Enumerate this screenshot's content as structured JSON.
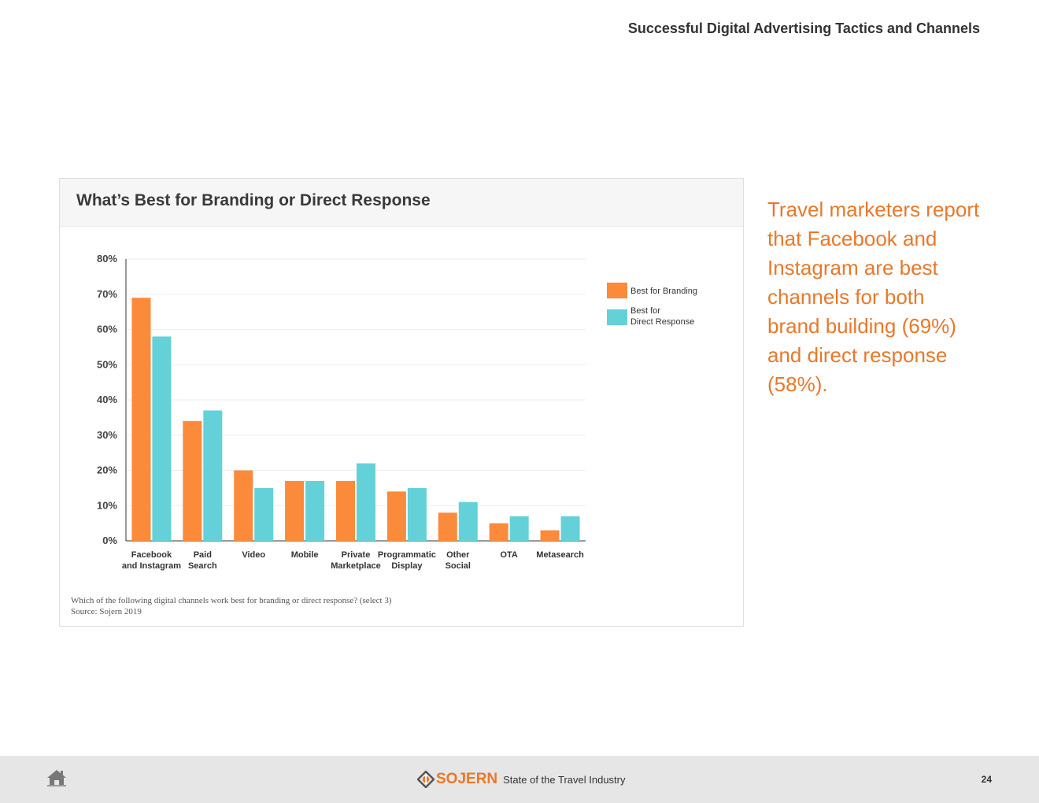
{
  "header": {
    "title": "Successful Digital Advertising Tactics and Channels"
  },
  "callout": {
    "text": "Travel marketers report that Facebook and Instagram are best channels for both brand building (69%) and direct response (58%)."
  },
  "chart_note": {
    "question": "Which of the following digital channels work best for branding or direct response? (select 3)",
    "source": "Source: Sojern 2019"
  },
  "footer": {
    "brand": "SOJERN",
    "tagline": "State of the Travel Industry",
    "page_number": "24",
    "home_icon": "home-icon",
    "brand_icon": "sojern-logo-icon"
  },
  "colors": {
    "branding": "#fb8a3a",
    "direct": "#64d1d9",
    "accent": "#e8782a"
  },
  "chart_data": {
    "type": "bar",
    "title": "What’s Best for Branding or Direct Response",
    "categories": [
      [
        "Facebook",
        "and Instagram"
      ],
      [
        "Paid",
        "Search"
      ],
      [
        "Video"
      ],
      [
        "Mobile"
      ],
      [
        "Private",
        "Marketplace"
      ],
      [
        "Programmatic",
        "Display"
      ],
      [
        "Other",
        "Social"
      ],
      [
        "OTA"
      ],
      [
        "Metasearch"
      ]
    ],
    "series": [
      {
        "name": "Best for Branding",
        "values": [
          69,
          34,
          20,
          17,
          17,
          14,
          8,
          5,
          3
        ]
      },
      {
        "name": "Best for Direct Response",
        "legend_lines": [
          "Best for",
          "Direct Response"
        ],
        "values": [
          58,
          37,
          15,
          17,
          22,
          15,
          11,
          7,
          7
        ]
      }
    ],
    "ylim": [
      0,
      80
    ],
    "yticks": [
      "0%",
      "10%",
      "20%",
      "30%",
      "40%",
      "50%",
      "60%",
      "70%",
      "80%"
    ],
    "grid": true,
    "legend": "right"
  }
}
